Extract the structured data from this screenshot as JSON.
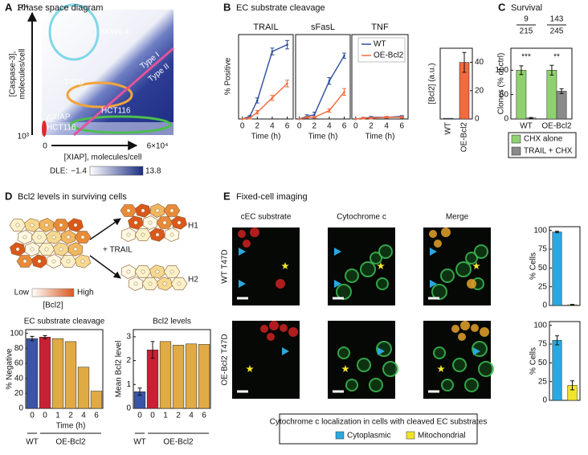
{
  "panels": [
    {
      "letter": "A",
      "title": "Phase space diagram"
    },
    {
      "letter": "B",
      "title": "EC substrate cleavage"
    },
    {
      "letter": "C",
      "title": "Survival"
    },
    {
      "letter": "D",
      "title": "Bcl2 levels in surviving cells"
    },
    {
      "letter": "E",
      "title": "Fixed-cell imaging"
    }
  ],
  "phase_diagram": {
    "y_label": [
      "[Caspase-3],",
      "molecules/cell"
    ],
    "y_max": "10⁶",
    "y_min": "10³",
    "x_min": "0",
    "x_max": "6×10⁴",
    "x_label": "[XIAP], molecules/cell",
    "regions": [
      "SKW6.4",
      "Type I",
      "Type II",
      "T47D",
      "HCT116",
      "ΔXIAP",
      "HCT116"
    ],
    "colorbar": {
      "label": "DLE:",
      "min": "−1.4",
      "max": "13.8"
    }
  },
  "bcl2_diagram": {
    "treatment": "+ TRAIL",
    "outcomes": [
      "H1",
      "H2"
    ],
    "scale": {
      "low": "Low",
      "high": "High",
      "label": "[Bcl2]"
    }
  },
  "imaging": {
    "columns": [
      "cEC substrate",
      "Cytochrome c",
      "Merge"
    ],
    "rows": [
      "WT  T47D",
      "OE-Bcl2  T47D"
    ],
    "legend": {
      "title": "Cytochrome c localization in cells with cleaved EC substrates",
      "items": [
        {
          "name": "Cytoplasmic",
          "color": "#2aa8df"
        },
        {
          "name": "Mitochondrial",
          "color": "#f1e52c"
        }
      ]
    }
  },
  "chart_data": [
    {
      "type": "line",
      "title": "TRAIL",
      "x": [
        0,
        1,
        2,
        4,
        6
      ],
      "xlim": [
        -0.5,
        6.8
      ],
      "xticks": [
        0,
        2,
        4,
        6
      ],
      "ylim": [
        0,
        100
      ],
      "x_label": "Time (h)",
      "y_label": "% Positive",
      "series": [
        {
          "color": "#2b4c9c",
          "values": [
            0,
            3,
            22,
            80,
            88
          ],
          "errors": [
            0,
            1,
            3,
            4,
            5
          ]
        },
        {
          "color": "#f26a3d",
          "values": [
            0,
            1,
            8,
            25,
            42
          ],
          "errors": [
            0,
            1,
            2,
            3,
            4
          ]
        }
      ]
    },
    {
      "type": "line",
      "title": "sFasL",
      "x": [
        0,
        1,
        2,
        4,
        6
      ],
      "xlim": [
        -0.5,
        6.8
      ],
      "xticks": [
        0,
        2,
        4,
        6
      ],
      "ylim": [
        0,
        100
      ],
      "x_label": "Time (h)",
      "series": [
        {
          "color": "#2b4c9c",
          "values": [
            0,
            3,
            5,
            45,
            75
          ],
          "errors": [
            0,
            2,
            3,
            4,
            3
          ]
        },
        {
          "color": "#f26a3d",
          "values": [
            0,
            2,
            2,
            10,
            32
          ],
          "errors": [
            0,
            1,
            1,
            2,
            4
          ]
        }
      ]
    },
    {
      "type": "line",
      "title": "TNF",
      "x": [
        0,
        1,
        2,
        4,
        6
      ],
      "xlim": [
        -0.5,
        6.8
      ],
      "xticks": [
        0,
        2,
        4,
        6
      ],
      "ylim": [
        0,
        100
      ],
      "x_label": "Time (h)",
      "legend": "upper-right",
      "series": [
        {
          "name": "WT",
          "color": "#2b4c9c",
          "values": [
            0,
            1,
            2,
            2,
            3
          ],
          "errors": [
            0,
            1,
            1,
            1,
            1
          ]
        },
        {
          "name": "OE-Bcl2",
          "color": "#f26a3d",
          "values": [
            0,
            1,
            1,
            2,
            2
          ],
          "errors": [
            0,
            1,
            1,
            1,
            1
          ]
        }
      ]
    },
    {
      "type": "bar",
      "categories": [
        "WT",
        "OE-Bcl2"
      ],
      "values": [
        0.5,
        40
      ],
      "errors": [
        null,
        7
      ],
      "colors": [
        "#2b4c9c",
        "#f26a3d"
      ],
      "ylim": [
        0,
        50
      ],
      "yticks": [
        0,
        20,
        40
      ],
      "y_label": "[Bcl2] (a.u.)"
    },
    {
      "type": "grouped_bar",
      "categories": [
        "WT",
        "OE-Bcl2"
      ],
      "y_label": "Clones (% of ctrl)",
      "ylim": [
        0,
        145
      ],
      "yticks": [
        0,
        50,
        100
      ],
      "legend": "below",
      "series": [
        {
          "name": "CHX alone",
          "color": "#8fd16f",
          "values": [
            100,
            100
          ],
          "errors": [
            9,
            10
          ]
        },
        {
          "name": "TRAIL + CHX",
          "color": "#8a8a8a",
          "values": [
            2,
            57
          ],
          "errors": [
            1,
            5
          ]
        }
      ],
      "annotations": [
        {
          "survivors": 9,
          "total": 215,
          "significance": "***"
        },
        {
          "survivors": 143,
          "total": 245,
          "significance": "**"
        }
      ]
    },
    {
      "type": "bar",
      "title": "EC substrate cleavage",
      "categories": [
        "0",
        "0",
        "1",
        "2",
        "4",
        "6"
      ],
      "values": [
        93,
        95,
        93,
        89,
        55,
        23
      ],
      "errors": [
        3,
        2,
        null,
        null,
        null,
        null
      ],
      "colors": [
        "#3a55a8",
        "#c62233",
        "#e0aa45",
        "#e0aa45",
        "#e0aa45",
        "#e0aa45"
      ],
      "ylim": [
        0,
        105
      ],
      "yticks": [
        0,
        20,
        40,
        60,
        80,
        100
      ],
      "y_label": "% Negative",
      "x_label": "Time (h)",
      "groups": [
        "WT",
        "OE-Bcl2"
      ]
    },
    {
      "type": "bar",
      "title": "Bcl2 levels",
      "categories": [
        "0",
        "0",
        "1",
        "2",
        "4",
        "6"
      ],
      "values": [
        0.7,
        2.45,
        2.8,
        2.65,
        2.7,
        2.68
      ],
      "errors": [
        0.15,
        0.35,
        null,
        null,
        null,
        null
      ],
      "colors": [
        "#3a55a8",
        "#c62233",
        "#e0aa45",
        "#e0aa45",
        "#e0aa45",
        "#e0aa45"
      ],
      "ylim": [
        0,
        3.3
      ],
      "yticks": [
        0,
        1,
        2,
        3
      ],
      "y_label": "Mean Bcl2 level",
      "groups": [
        "WT",
        "OE-Bcl2"
      ]
    },
    {
      "type": "bar",
      "values": [
        98,
        1
      ],
      "errors": [
        1,
        0.5
      ],
      "colors": [
        "#2aa8df",
        "#f1e52c"
      ],
      "ylim": [
        0,
        105
      ],
      "yticks": [
        0,
        25,
        50,
        75,
        100
      ],
      "y_label": "% Cells"
    },
    {
      "type": "bar",
      "values": [
        80,
        20
      ],
      "errors": [
        6,
        6
      ],
      "colors": [
        "#2aa8df",
        "#f1e52c"
      ],
      "ylim": [
        0,
        105
      ],
      "yticks": [
        0,
        25,
        50,
        75,
        100
      ],
      "y_label": "% Cells"
    }
  ]
}
